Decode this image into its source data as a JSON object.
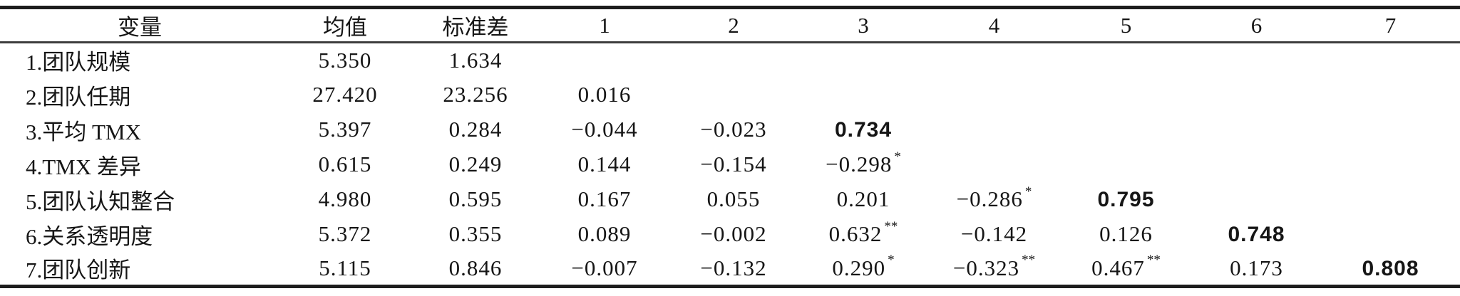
{
  "table": {
    "headers": [
      "变量",
      "均值",
      "标准差",
      "1",
      "2",
      "3",
      "4",
      "5",
      "6",
      "7"
    ],
    "rows": [
      {
        "label": "1.团队规模",
        "mean": "5.350",
        "sd": "1.634",
        "corr": [],
        "diag_bold": false
      },
      {
        "label": "2.团队任期",
        "mean": "27.420",
        "sd": "23.256",
        "corr": [
          "0.016"
        ],
        "diag_bold": false
      },
      {
        "label": "3.平均 TMX",
        "mean": "5.397",
        "sd": "0.284",
        "corr": [
          "−0.044",
          "−0.023",
          "0.734"
        ],
        "diag_bold": true
      },
      {
        "label": "4.TMX 差异",
        "mean": "0.615",
        "sd": "0.249",
        "corr": [
          "0.144",
          "−0.154",
          "−0.298*"
        ],
        "diag_bold": false
      },
      {
        "label": "5.团队认知整合",
        "mean": "4.980",
        "sd": "0.595",
        "corr": [
          "0.167",
          "0.055",
          "0.201",
          "−0.286*",
          "0.795"
        ],
        "diag_bold": true
      },
      {
        "label": "6.关系透明度",
        "mean": "5.372",
        "sd": "0.355",
        "corr": [
          "0.089",
          "−0.002",
          "0.632**",
          "−0.142",
          "0.126",
          "0.748"
        ],
        "diag_bold": true
      },
      {
        "label": "7.团队创新",
        "mean": "5.115",
        "sd": "0.846",
        "corr": [
          "−0.007",
          "−0.132",
          "0.290*",
          "−0.323**",
          "0.467**",
          "0.173",
          "0.808"
        ],
        "diag_bold": true
      }
    ],
    "num_corr_columns": 7
  },
  "colors": {
    "text": "#161616",
    "rule_heavy": "#1d1d1d",
    "rule_light": "#3d3d3d",
    "background": "#ffffff"
  }
}
